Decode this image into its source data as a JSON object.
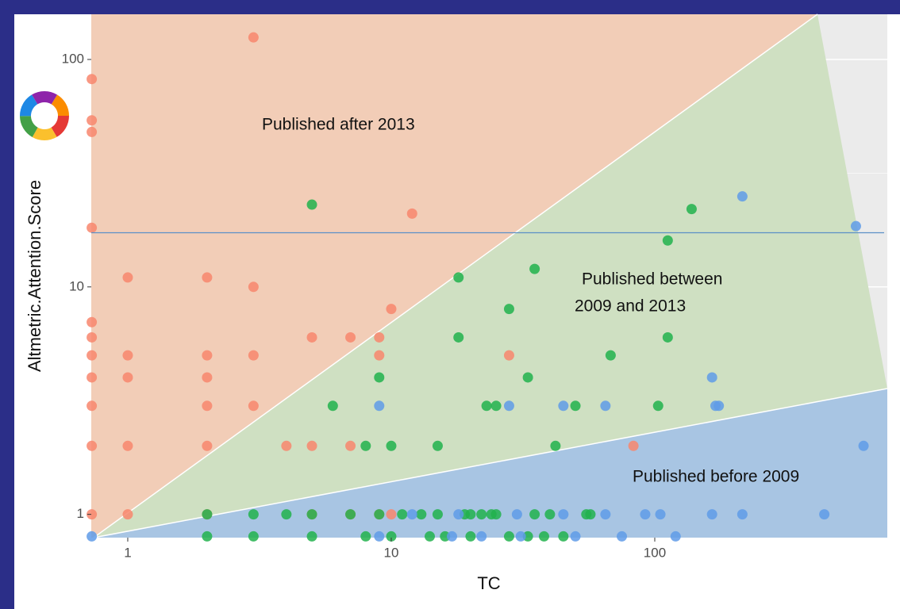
{
  "chart_data": {
    "type": "scatter",
    "x_label": "TC",
    "y_label": "Altmetric.Attention.Score",
    "xscale": "log",
    "yscale": "log",
    "xlim": [
      0.727,
      763
    ],
    "ylim": [
      0.79,
      158
    ],
    "xticks": [
      1,
      10,
      100
    ],
    "yticks": [
      1,
      10,
      100
    ],
    "grid": true,
    "hline": {
      "value": 17.3,
      "color": "#5b8fc7"
    },
    "annotations": [
      "Published after 2013",
      "Published between",
      "2009 and 2013",
      "Published before 2009"
    ],
    "series": [
      {
        "color": "#f8866d",
        "x": [
          0.73,
          0.73,
          0.73,
          0.73,
          0.73,
          0.73,
          0.73,
          0.73,
          0.73,
          0.73,
          0.73,
          1,
          1,
          1,
          1,
          1,
          2,
          2,
          2,
          2,
          2,
          2,
          3,
          3,
          3,
          3,
          4,
          5,
          5,
          7,
          7,
          9,
          9,
          10,
          12,
          28,
          83,
          5,
          7,
          9,
          10
        ],
        "values": [
          82,
          54,
          48,
          18.2,
          7,
          6,
          5,
          4,
          3,
          2,
          1,
          11,
          5,
          4,
          2,
          1,
          11,
          5,
          4,
          3,
          2,
          1,
          125,
          10,
          5,
          3,
          2,
          6,
          2,
          6,
          2,
          6,
          5,
          8,
          21,
          5,
          2,
          1,
          1,
          1,
          1
        ]
      },
      {
        "color": "#21b24c",
        "x": [
          5,
          18,
          18,
          28,
          35,
          9,
          8,
          10,
          6,
          15,
          23,
          25,
          33,
          42,
          50,
          68,
          103,
          112,
          112,
          138,
          2,
          3,
          4,
          5,
          7,
          9,
          11,
          13,
          15,
          19,
          20,
          22,
          24,
          25,
          35,
          40,
          55,
          57,
          2,
          3,
          5,
          8,
          10,
          14,
          16,
          20,
          28,
          33,
          38,
          45
        ],
        "values": [
          23,
          11,
          6,
          8,
          12,
          4,
          2,
          2,
          3,
          2,
          3,
          3,
          4,
          2,
          3,
          5,
          3,
          16,
          6,
          22,
          1,
          1,
          1,
          1,
          1,
          1,
          1,
          1,
          1,
          1,
          1,
          1,
          1,
          1,
          1,
          1,
          1,
          1,
          0.8,
          0.8,
          0.8,
          0.8,
          0.8,
          0.8,
          0.8,
          0.8,
          0.8,
          0.8,
          0.8,
          0.8
        ]
      },
      {
        "color": "#5f9be8",
        "x": [
          215,
          580,
          165,
          170,
          175,
          28,
          9,
          45,
          65,
          620,
          12,
          18,
          30,
          45,
          65,
          92,
          105,
          165,
          215,
          440,
          0.73,
          9,
          17,
          22,
          31,
          50,
          75,
          120
        ],
        "values": [
          25,
          18.5,
          4,
          3,
          3,
          3,
          3,
          3,
          3,
          2,
          1,
          1,
          1,
          1,
          1,
          1,
          1,
          1,
          1,
          1,
          0.8,
          0.8,
          0.8,
          0.8,
          0.8,
          0.8,
          0.8,
          0.8
        ]
      }
    ]
  }
}
